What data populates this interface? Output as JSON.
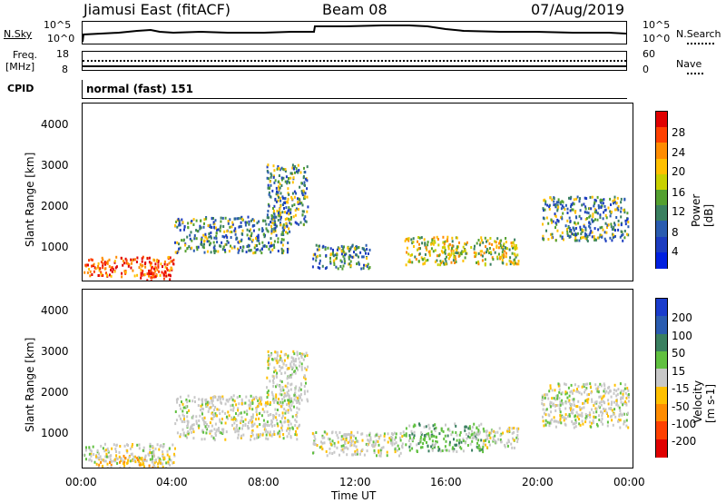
{
  "header": {
    "station": "Jiamusi East (fitACF)",
    "beam": "Beam 08",
    "date": "07/Aug/2019"
  },
  "noise_panel": {
    "left_label": "N.Sky",
    "left_ticks": [
      "10^5",
      "10^0"
    ],
    "right_label": "N.Search",
    "right_ticks": [
      "10^5",
      "10^0"
    ]
  },
  "freq_panel": {
    "left_label_1": "Freq.",
    "left_label_2": "[MHz]",
    "left_ticks": [
      "18",
      "8"
    ],
    "right_label": "Nave",
    "right_ticks": [
      "60",
      "0"
    ]
  },
  "cpid_panel": {
    "label": "CPID",
    "value": "normal (fast) 151"
  },
  "power_colorbar": {
    "title": "Power [dB]",
    "ticks": [
      "28",
      "24",
      "20",
      "16",
      "12",
      "8",
      "4"
    ],
    "colors": [
      "#e00000",
      "#ff4000",
      "#ff8c00",
      "#ffc000",
      "#c8d000",
      "#54a030",
      "#3a8060",
      "#2a5cb0",
      "#1c3cc0",
      "#0020e0"
    ]
  },
  "velocity_colorbar": {
    "title": "Velocity [m s-1]",
    "ticks": [
      "200",
      "100",
      "50",
      "15",
      "-15",
      "-50",
      "-100",
      "-200"
    ],
    "colors": [
      "#1a3ccc",
      "#2a5cb0",
      "#3a8060",
      "#60c040",
      "#c8c8c8",
      "#ffc000",
      "#ff8c00",
      "#ff4000",
      "#e00000"
    ]
  },
  "chart_data": [
    {
      "type": "heatmap",
      "name": "Power",
      "ylabel": "Slant Range [km]",
      "xlabel": "Time UT",
      "xlim": [
        "00:00",
        "24:00"
      ],
      "ylim": [
        180,
        4600
      ],
      "y_ticks": [
        "4000",
        "3000",
        "2000",
        "1000"
      ],
      "regions": [
        {
          "t0": 0.0,
          "t1": 4.0,
          "r0": 300,
          "r1": 800,
          "level": "high"
        },
        {
          "t0": 2.5,
          "t1": 3.8,
          "r0": 200,
          "r1": 550,
          "level": "max"
        },
        {
          "t0": 4.0,
          "t1": 9.0,
          "r0": 900,
          "r1": 1800,
          "level": "low"
        },
        {
          "t0": 8.0,
          "t1": 9.8,
          "r0": 1600,
          "r1": 3100,
          "level": "low"
        },
        {
          "t0": 10.0,
          "t1": 12.5,
          "r0": 500,
          "r1": 1100,
          "level": "low"
        },
        {
          "t0": 14.0,
          "t1": 19.0,
          "r0": 600,
          "r1": 1300,
          "level": "mid"
        },
        {
          "t0": 20.0,
          "t1": 23.8,
          "r0": 1200,
          "r1": 2300,
          "level": "low"
        }
      ]
    },
    {
      "type": "heatmap",
      "name": "Velocity",
      "ylabel": "Slant Range [km]",
      "xlabel": "Time UT",
      "xlim": [
        "00:00",
        "24:00"
      ],
      "ylim": [
        180,
        4600
      ],
      "y_ticks": [
        "4000",
        "3000",
        "2000",
        "1000"
      ],
      "x_ticks": [
        "00:00",
        "04:00",
        "08:00",
        "12:00",
        "16:00",
        "20:00",
        "00:00"
      ],
      "regions": [
        {
          "t0": 0.0,
          "t1": 4.0,
          "r0": 300,
          "r1": 800,
          "level": "near-zero"
        },
        {
          "t0": 0.5,
          "t1": 4.0,
          "r0": 200,
          "r1": 500,
          "level": "negative"
        },
        {
          "t0": 4.0,
          "t1": 9.5,
          "r0": 900,
          "r1": 2000,
          "level": "near-zero"
        },
        {
          "t0": 8.0,
          "t1": 9.8,
          "r0": 1800,
          "r1": 3100,
          "level": "near-zero"
        },
        {
          "t0": 10.0,
          "t1": 14.0,
          "r0": 500,
          "r1": 1100,
          "level": "near-zero"
        },
        {
          "t0": 14.0,
          "t1": 17.5,
          "r0": 600,
          "r1": 1300,
          "level": "positive"
        },
        {
          "t0": 17.0,
          "t1": 19.0,
          "r0": 700,
          "r1": 1200,
          "level": "near-zero"
        },
        {
          "t0": 20.0,
          "t1": 23.8,
          "r0": 1200,
          "r1": 2300,
          "level": "near-zero"
        }
      ]
    }
  ]
}
